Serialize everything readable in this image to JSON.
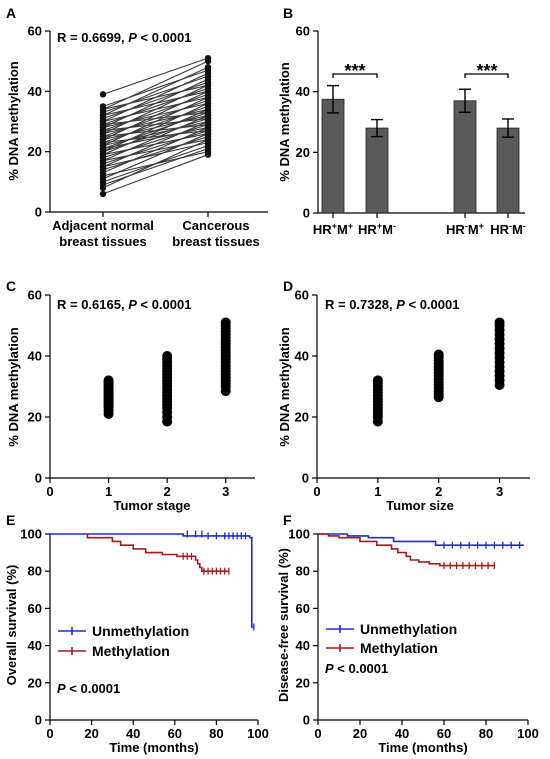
{
  "panels": {
    "A": {
      "letter": "A",
      "stat": {
        "r_text": "R = 0.6699, ",
        "p_label": "P",
        "p_text": " < 0.0001"
      },
      "ylabel": "% DNA methylation",
      "y_ticks": [
        "0",
        "20",
        "40",
        "60"
      ],
      "x_cat1": {
        "line1": "Adjacent normal",
        "line2": "breast tissues"
      },
      "x_cat2": {
        "line1": "Cancerous",
        "line2": "breast tissues"
      }
    },
    "B": {
      "letter": "B",
      "ylabel": "% DNA methylation",
      "y_ticks": [
        "0",
        "20",
        "40",
        "60"
      ],
      "sig_left": "***",
      "sig_right": "***",
      "bar_labels": [
        {
          "base": "HR",
          "sup1": "+",
          "mid": "M",
          "sup2": "+"
        },
        {
          "base": "HR",
          "sup1": "+",
          "mid": "M",
          "sup2": "-"
        },
        {
          "base": "HR",
          "sup1": "-",
          "mid": "M",
          "sup2": "+"
        },
        {
          "base": "HR",
          "sup1": "-",
          "mid": "M",
          "sup2": "-"
        }
      ]
    },
    "C": {
      "letter": "C",
      "stat": {
        "r_text": "R = 0.6165, ",
        "p_label": "P",
        "p_text": " < 0.0001"
      },
      "ylabel": "% DNA methylation",
      "xlabel": "Tumor stage",
      "y_ticks": [
        "0",
        "20",
        "40",
        "60"
      ],
      "x_ticks": [
        "0",
        "1",
        "2",
        "3"
      ]
    },
    "D": {
      "letter": "D",
      "stat": {
        "r_text": "R = 0.7328, ",
        "p_label": "P",
        "p_text": " < 0.0001"
      },
      "ylabel": "% DNA methylation",
      "xlabel": "Tumor size",
      "y_ticks": [
        "0",
        "20",
        "40",
        "60"
      ],
      "x_ticks": [
        "0",
        "1",
        "2",
        "3"
      ]
    },
    "E": {
      "letter": "E",
      "ylabel": "Overall survival (%)",
      "xlabel": "Time (months)",
      "y_ticks": [
        "0",
        "20",
        "40",
        "60",
        "80",
        "100"
      ],
      "x_ticks": [
        "0",
        "20",
        "40",
        "60",
        "80",
        "100"
      ],
      "legend": [
        "Unmethylation",
        "Methylation"
      ],
      "p_label": "P",
      "p_text": " < 0.0001"
    },
    "F": {
      "letter": "F",
      "ylabel": "Disease-free survival (%)",
      "xlabel": "Time (months)",
      "y_ticks": [
        "0",
        "20",
        "40",
        "60",
        "80",
        "100"
      ],
      "x_ticks": [
        "0",
        "20",
        "40",
        "60",
        "80",
        "100"
      ],
      "legend": [
        "Unmethylation",
        "Methylation"
      ],
      "p_label": "P",
      "p_text": " < 0.0001"
    }
  },
  "colors": {
    "unmethylation": "#1f2bd8",
    "methylation": "#a61c1c",
    "bar": "#5a5a5a",
    "axis": "#000000"
  },
  "chart_data": [
    {
      "panel": "A",
      "type": "line",
      "title": "R = 0.6699, P < 0.0001",
      "xlabel": "",
      "ylabel": "% DNA methylation",
      "categories": [
        "Adjacent normal breast tissues",
        "Cancerous breast tissues"
      ],
      "ylim": [
        0,
        60
      ],
      "paired": [
        [
          6,
          19
        ],
        [
          8,
          24
        ],
        [
          9,
          21
        ],
        [
          10,
          22
        ],
        [
          11,
          26
        ],
        [
          12,
          20
        ],
        [
          13,
          28
        ],
        [
          14,
          25
        ],
        [
          15,
          30
        ],
        [
          15,
          23
        ],
        [
          16,
          27
        ],
        [
          17,
          32
        ],
        [
          17,
          24
        ],
        [
          18,
          29
        ],
        [
          19,
          34
        ],
        [
          19,
          26
        ],
        [
          20,
          31
        ],
        [
          20,
          36
        ],
        [
          21,
          28
        ],
        [
          21,
          33
        ],
        [
          22,
          38
        ],
        [
          22,
          30
        ],
        [
          23,
          35
        ],
        [
          23,
          27
        ],
        [
          24,
          40
        ],
        [
          24,
          32
        ],
        [
          25,
          37
        ],
        [
          25,
          29
        ],
        [
          26,
          42
        ],
        [
          26,
          34
        ],
        [
          27,
          39
        ],
        [
          27,
          31
        ],
        [
          28,
          44
        ],
        [
          28,
          36
        ],
        [
          29,
          41
        ],
        [
          29,
          33
        ],
        [
          30,
          46
        ],
        [
          30,
          38
        ],
        [
          31,
          43
        ],
        [
          32,
          48
        ],
        [
          32,
          40
        ],
        [
          33,
          45
        ],
        [
          34,
          50
        ],
        [
          34,
          42
        ],
        [
          35,
          47
        ],
        [
          39,
          51
        ]
      ]
    },
    {
      "panel": "B",
      "type": "bar",
      "title": "",
      "xlabel": "",
      "ylabel": "% DNA methylation",
      "categories": [
        "HR+M+",
        "HR+M-",
        "HR-M+",
        "HR-M-"
      ],
      "values": [
        37.5,
        28,
        37,
        28
      ],
      "errors": [
        4.5,
        2.8,
        3.8,
        3.0
      ],
      "ylim": [
        0,
        60
      ]
    },
    {
      "panel": "C",
      "type": "scatter",
      "title": "R = 0.6165, P < 0.0001",
      "xlabel": "Tumor stage",
      "ylabel": "% DNA methylation",
      "xlim": [
        0,
        3.5
      ],
      "ylim": [
        0,
        60
      ],
      "groups": [
        {
          "x": 1,
          "y": [
            21,
            22,
            23,
            23.5,
            24,
            24.5,
            25,
            25.5,
            26,
            26.5,
            27,
            27.5,
            28,
            28.5,
            29,
            29.5,
            30,
            30.5,
            31,
            31.5,
            32
          ]
        },
        {
          "x": 2,
          "y": [
            18.5,
            20,
            21.5,
            23,
            24,
            25,
            26,
            27,
            28,
            29,
            30,
            31,
            32,
            33,
            34,
            35,
            36,
            37,
            38,
            39,
            40
          ]
        },
        {
          "x": 3,
          "y": [
            28.5,
            30,
            31,
            32,
            33,
            34,
            35,
            36,
            37,
            38,
            39,
            40,
            41,
            42,
            43,
            44,
            45,
            46,
            47,
            48,
            49,
            50,
            51
          ]
        }
      ]
    },
    {
      "panel": "D",
      "type": "scatter",
      "title": "R = 0.7328, P < 0.0001",
      "xlabel": "Tumor size",
      "ylabel": "% DNA methylation",
      "xlim": [
        0,
        3.5
      ],
      "ylim": [
        0,
        60
      ],
      "groups": [
        {
          "x": 1,
          "y": [
            18.5,
            20,
            21,
            22,
            23,
            24,
            25,
            26,
            27,
            28,
            29,
            30,
            31,
            32
          ]
        },
        {
          "x": 2,
          "y": [
            26.5,
            27.5,
            28.5,
            29.5,
            30.5,
            31.5,
            32.5,
            33.5,
            34.5,
            35.5,
            36.5,
            37.5,
            38.5,
            39.5,
            40.5
          ]
        },
        {
          "x": 3,
          "y": [
            30.5,
            32,
            33.5,
            35,
            36.5,
            38,
            39.5,
            41,
            42.5,
            44,
            45.5,
            47,
            48.5,
            50,
            51
          ]
        }
      ]
    },
    {
      "panel": "E",
      "type": "line",
      "title": "",
      "xlabel": "Time (months)",
      "ylabel": "Overall survival (%)",
      "xlim": [
        0,
        100
      ],
      "ylim": [
        0,
        100
      ],
      "series": [
        {
          "name": "Unmethylation",
          "steps": [
            [
              0,
              100
            ],
            [
              64,
              100
            ],
            [
              64,
              99
            ],
            [
              96,
              99
            ],
            [
              96,
              98
            ],
            [
              97,
              98
            ],
            [
              97,
              50
            ],
            [
              98,
              50
            ]
          ],
          "censor": [
            [
              66,
              100
            ],
            [
              70,
              100
            ],
            [
              73,
              100
            ],
            [
              76,
              99
            ],
            [
              80,
              99
            ],
            [
              84,
              99
            ],
            [
              86,
              99
            ],
            [
              88,
              99
            ],
            [
              90,
              99
            ],
            [
              92,
              99
            ],
            [
              94,
              99
            ],
            [
              98,
              50
            ]
          ]
        },
        {
          "name": "Methylation",
          "steps": [
            [
              18,
              100
            ],
            [
              18,
              98
            ],
            [
              30,
              98
            ],
            [
              30,
              96
            ],
            [
              34,
              96
            ],
            [
              34,
              94
            ],
            [
              40,
              94
            ],
            [
              40,
              92
            ],
            [
              46,
              92
            ],
            [
              46,
              90
            ],
            [
              54,
              90
            ],
            [
              54,
              89
            ],
            [
              61,
              89
            ],
            [
              61,
              88
            ],
            [
              70,
              88
            ],
            [
              70,
              86
            ],
            [
              71,
              86
            ],
            [
              71,
              84
            ],
            [
              72,
              84
            ],
            [
              72,
              82
            ],
            [
              73,
              82
            ],
            [
              73,
              80
            ],
            [
              86,
              80
            ]
          ],
          "censor": [
            [
              64,
              88
            ],
            [
              66,
              88
            ],
            [
              68,
              88
            ],
            [
              74,
              80
            ],
            [
              76,
              80
            ],
            [
              78,
              80
            ],
            [
              80,
              80
            ],
            [
              82,
              80
            ],
            [
              84,
              80
            ],
            [
              86,
              80
            ]
          ]
        }
      ]
    },
    {
      "panel": "F",
      "type": "line",
      "title": "",
      "xlabel": "Time (months)",
      "ylabel": "Disease-free survival (%)",
      "xlim": [
        0,
        100
      ],
      "ylim": [
        0,
        100
      ],
      "series": [
        {
          "name": "Unmethylation",
          "steps": [
            [
              0,
              100
            ],
            [
              14,
              100
            ],
            [
              14,
              99
            ],
            [
              24,
              99
            ],
            [
              24,
              98
            ],
            [
              36,
              98
            ],
            [
              36,
              96
            ],
            [
              56,
              96
            ],
            [
              56,
              94
            ],
            [
              98,
              94
            ]
          ],
          "censor": [
            [
              60,
              94
            ],
            [
              64,
              94
            ],
            [
              68,
              94
            ],
            [
              72,
              94
            ],
            [
              76,
              94
            ],
            [
              80,
              94
            ],
            [
              84,
              94
            ],
            [
              88,
              94
            ],
            [
              92,
              94
            ],
            [
              96,
              94
            ]
          ]
        },
        {
          "name": "Methylation",
          "steps": [
            [
              0,
              100
            ],
            [
              5,
              100
            ],
            [
              5,
              99
            ],
            [
              10,
              99
            ],
            [
              10,
              98
            ],
            [
              20,
              98
            ],
            [
              20,
              96
            ],
            [
              28,
              96
            ],
            [
              28,
              94
            ],
            [
              35,
              94
            ],
            [
              35,
              92
            ],
            [
              38,
              92
            ],
            [
              38,
              90
            ],
            [
              42,
              90
            ],
            [
              42,
              88
            ],
            [
              44,
              88
            ],
            [
              44,
              86
            ],
            [
              48,
              86
            ],
            [
              48,
              85
            ],
            [
              53,
              85
            ],
            [
              53,
              84
            ],
            [
              58,
              84
            ],
            [
              58,
              83
            ],
            [
              84,
              83
            ]
          ],
          "censor": [
            [
              60,
              83
            ],
            [
              63,
              83
            ],
            [
              66,
              83
            ],
            [
              69,
              83
            ],
            [
              72,
              83
            ],
            [
              75,
              83
            ],
            [
              78,
              83
            ],
            [
              81,
              83
            ],
            [
              84,
              83
            ]
          ]
        }
      ]
    }
  ]
}
